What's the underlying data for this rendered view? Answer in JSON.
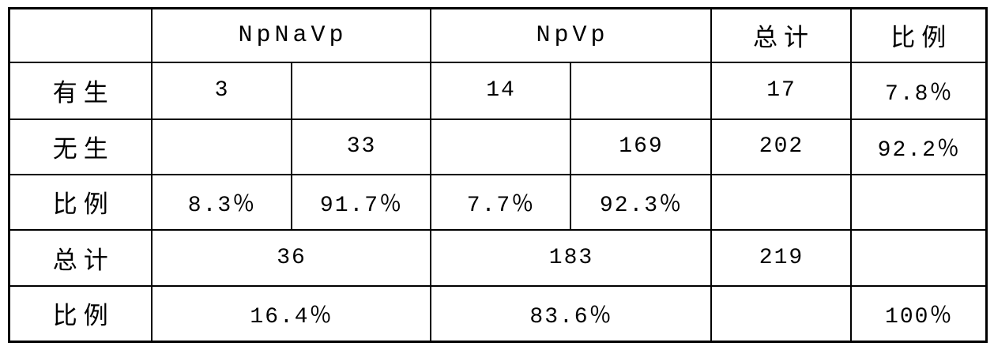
{
  "header": {
    "group1": "NpNaVp",
    "group2": "NpVp",
    "total": "总计",
    "ratio": "比例"
  },
  "rows": [
    {
      "label": "有生",
      "c1": "3",
      "c3": "14",
      "total": "17",
      "ratio": "7.8％"
    },
    {
      "label": "无生",
      "c2": "33",
      "c4": "169",
      "total": "202",
      "ratio": "92.2％"
    },
    {
      "label": "比例",
      "c1": "8.3％",
      "c2": "91.7％",
      "c3": "7.7％",
      "c4": "92.3％"
    },
    {
      "label": "总计",
      "group1": "36",
      "group2": "183",
      "total": "219"
    },
    {
      "label": "比例",
      "group1": "16.4％",
      "group2": "83.6％",
      "ratio": "100％"
    }
  ]
}
